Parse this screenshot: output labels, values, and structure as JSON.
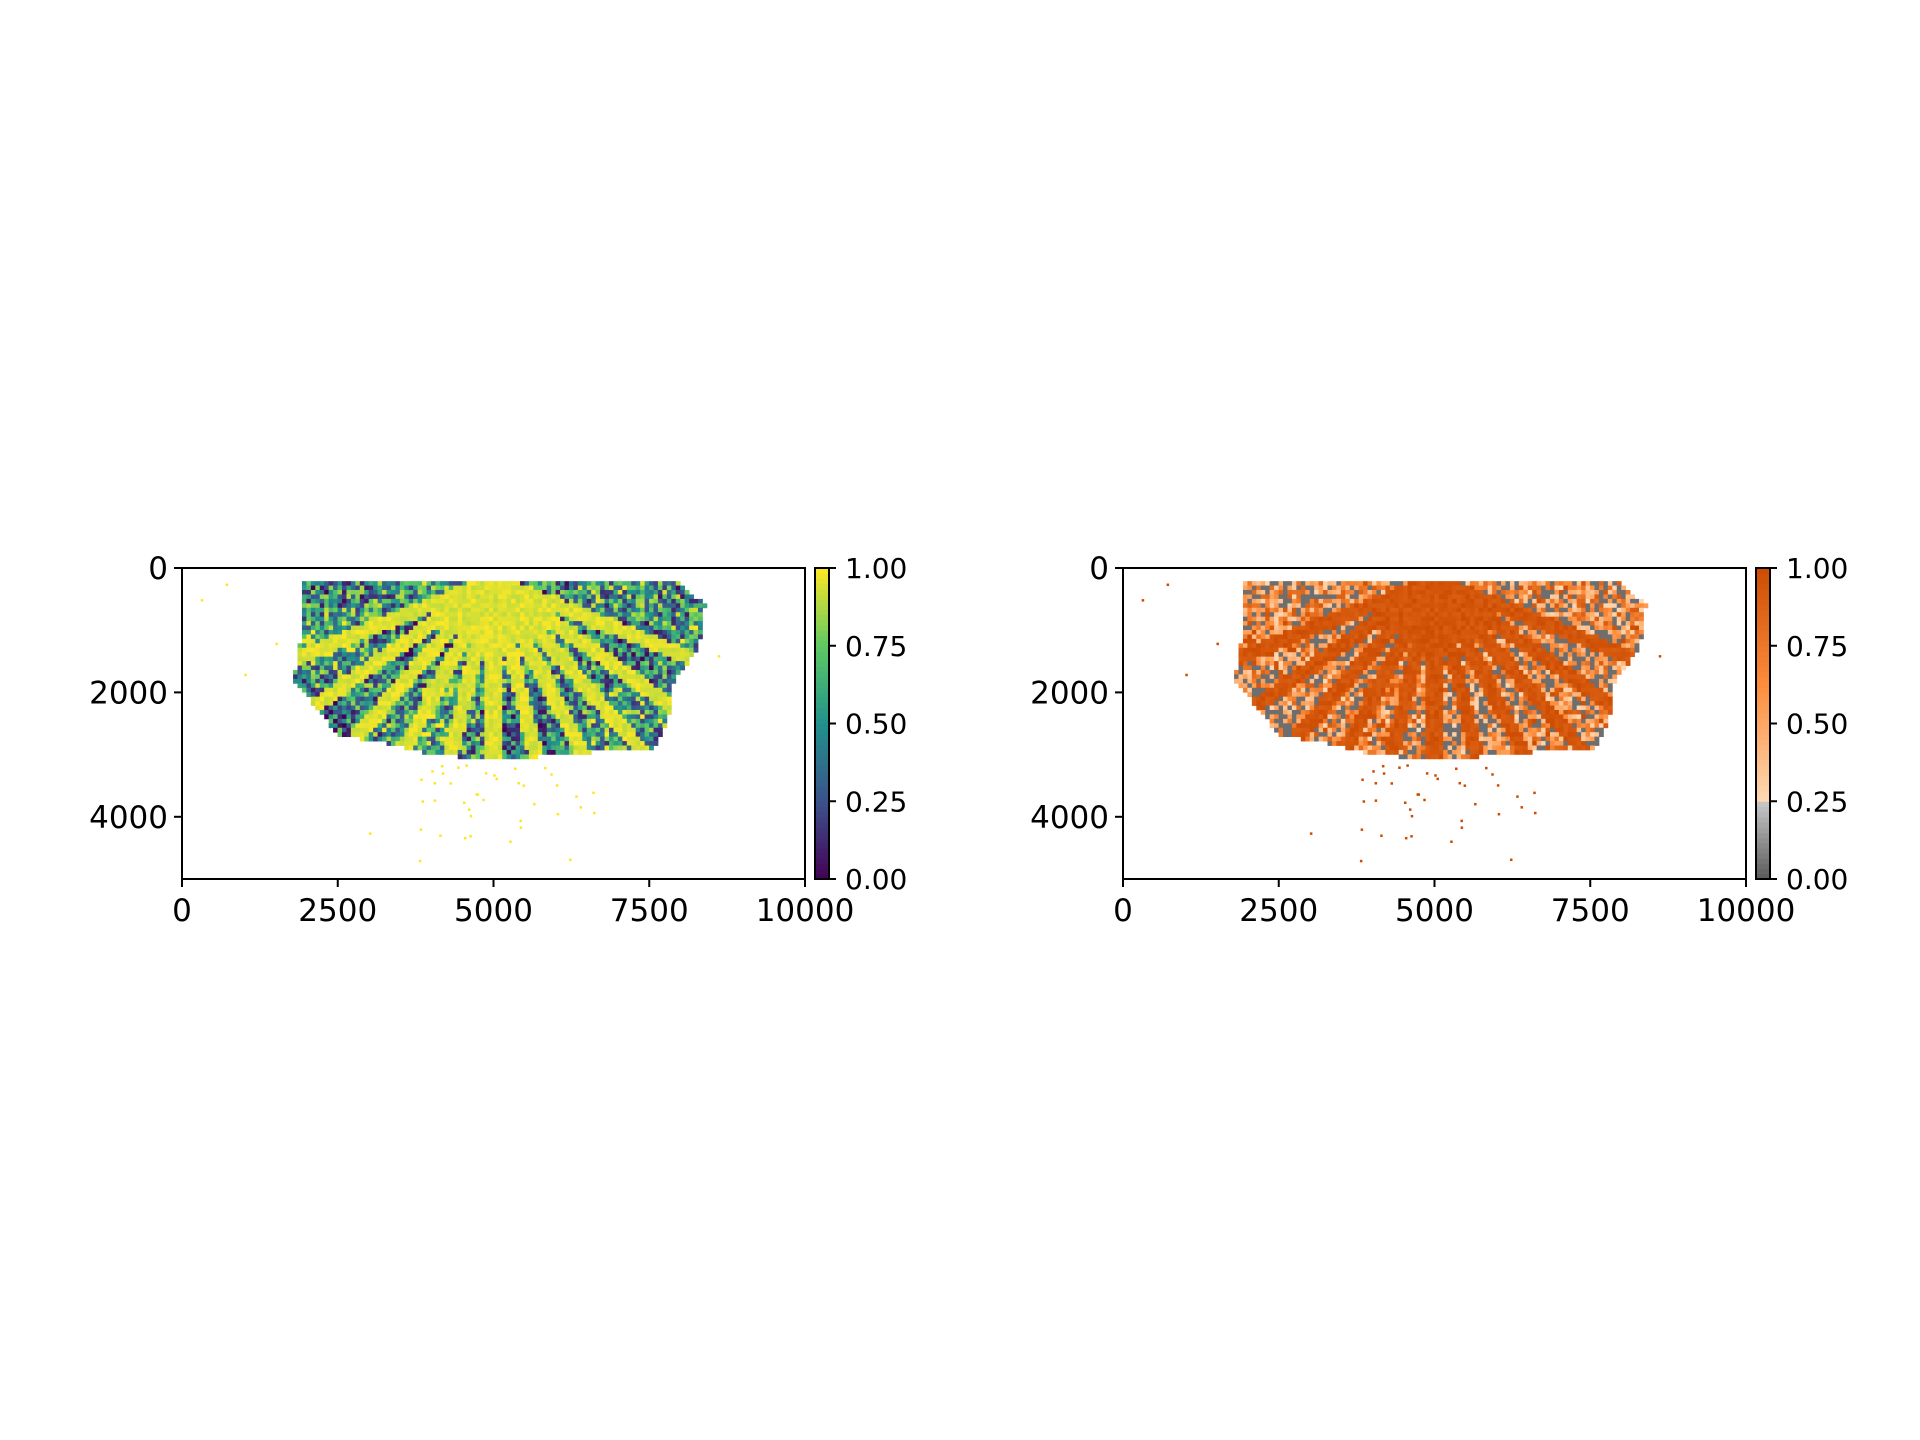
{
  "chart_data": [
    {
      "type": "heatmap",
      "title": "",
      "xlabel": "",
      "ylabel": "",
      "xlim": [
        0,
        10000
      ],
      "ylim": [
        5000,
        0
      ],
      "xticks": [
        "0",
        "2500",
        "5000",
        "7500",
        "10000"
      ],
      "xtick_values": [
        0,
        2500,
        5000,
        7500,
        10000
      ],
      "yticks": [
        "0",
        "2000",
        "4000"
      ],
      "ytick_values": [
        0,
        2000,
        4000
      ],
      "colormap": "viridis",
      "colorbar": {
        "range": [
          0,
          1
        ],
        "ticks": [
          "0.00",
          "0.25",
          "0.50",
          "0.75",
          "1.00"
        ],
        "tick_values": [
          0,
          0.25,
          0.5,
          0.75,
          1.0
        ],
        "colors": [
          "#440154",
          "#3b528b",
          "#21918c",
          "#5ec962",
          "#fde725"
        ]
      },
      "channel_color": "#fde725",
      "grid": false
    },
    {
      "type": "heatmap",
      "title": "",
      "xlabel": "",
      "ylabel": "",
      "xlim": [
        0,
        10000
      ],
      "ylim": [
        5000,
        0
      ],
      "xticks": [
        "0",
        "2500",
        "5000",
        "7500",
        "10000"
      ],
      "xtick_values": [
        0,
        2500,
        5000,
        7500,
        10000
      ],
      "yticks": [
        "0",
        "2000",
        "4000"
      ],
      "ytick_values": [
        0,
        2000,
        4000
      ],
      "colormap": "gray-to-oranges",
      "colorbar": {
        "range": [
          0,
          1
        ],
        "ticks": [
          "0.00",
          "0.25",
          "0.50",
          "0.75",
          "1.00"
        ],
        "tick_values": [
          0,
          0.25,
          0.5,
          0.75,
          1.0
        ],
        "threshold": 0.25,
        "colors": [
          "#5a5a5a",
          "#c8c8c8",
          "#fdd9b4",
          "#fd8d3c",
          "#cc4c02"
        ]
      },
      "channel_color": "#cc4c02",
      "grid": false
    }
  ]
}
